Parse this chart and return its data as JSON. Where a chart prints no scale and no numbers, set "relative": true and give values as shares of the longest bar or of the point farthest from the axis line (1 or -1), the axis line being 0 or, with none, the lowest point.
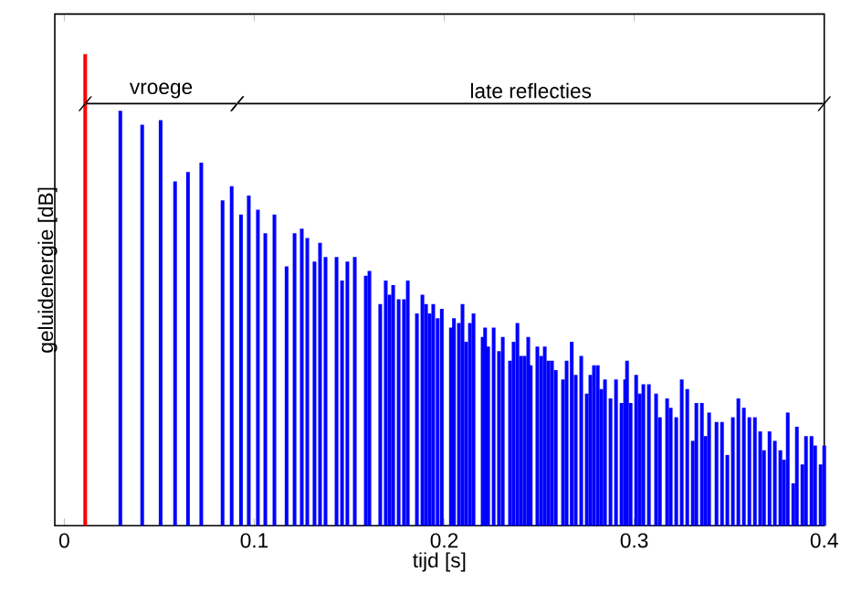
{
  "chart_data": {
    "type": "bar",
    "relative": true,
    "xlabel": "tijd  [s]",
    "ylabel": "geluidenergie  [dB]",
    "xlim": [
      -0.005,
      0.4
    ],
    "xticks": [
      0,
      0.1,
      0.2,
      0.3,
      0.4
    ],
    "grid": false,
    "annotations": [
      "vroege",
      "late reflecties"
    ],
    "x": [
      0.011,
      0.0295,
      0.041,
      0.0507,
      0.0583,
      0.0651,
      0.0721,
      0.0833,
      0.0881,
      0.093,
      0.0971,
      0.1019,
      0.1058,
      0.1106,
      0.117,
      0.1212,
      0.125,
      0.1279,
      0.1317,
      0.1346,
      0.1375,
      0.1433,
      0.1462,
      0.149,
      0.1529,
      0.1587,
      0.1606,
      0.1663,
      0.1692,
      0.1712,
      0.1731,
      0.176,
      0.1788,
      0.1808,
      0.1856,
      0.1885,
      0.1904,
      0.1923,
      0.1942,
      0.1965,
      0.1987,
      0.2035,
      0.2051,
      0.2077,
      0.2096,
      0.2115,
      0.2135,
      0.2154,
      0.2202,
      0.2215,
      0.2231,
      0.226,
      0.2288,
      0.2308,
      0.2346,
      0.2365,
      0.2385,
      0.2404,
      0.2423,
      0.2442,
      0.2455,
      0.249,
      0.251,
      0.2529,
      0.2548,
      0.2567,
      0.2587,
      0.2625,
      0.2644,
      0.2671,
      0.2692,
      0.2721,
      0.275,
      0.2769,
      0.2788,
      0.2808,
      0.2827,
      0.2846,
      0.2875,
      0.2904,
      0.2933,
      0.2952,
      0.2962,
      0.2981,
      0.301,
      0.3029,
      0.3048,
      0.3077,
      0.3115,
      0.3135,
      0.3173,
      0.3192,
      0.3221,
      0.325,
      0.3279,
      0.3308,
      0.3327,
      0.3356,
      0.3375,
      0.3394,
      0.3433,
      0.3462,
      0.349,
      0.3519,
      0.3548,
      0.3577,
      0.3606,
      0.3635,
      0.3663,
      0.3683,
      0.3712,
      0.374,
      0.3769,
      0.3788,
      0.3808,
      0.3837,
      0.3856,
      0.3885,
      0.3904,
      0.3933,
      0.3952,
      0.3981,
      0.4
    ],
    "values": [
      1,
      0.88,
      0.85,
      0.86,
      0.73,
      0.75,
      0.77,
      0.69,
      0.72,
      0.66,
      0.7,
      0.67,
      0.62,
      0.66,
      0.55,
      0.62,
      0.63,
      0.61,
      0.56,
      0.6,
      0.57,
      0.57,
      0.52,
      0.56,
      0.57,
      0.53,
      0.54,
      0.47,
      0.52,
      0.49,
      0.51,
      0.48,
      0.48,
      0.52,
      0.45,
      0.49,
      0.47,
      0.45,
      0.47,
      0.44,
      0.46,
      0.42,
      0.44,
      0.43,
      0.47,
      0.39,
      0.43,
      0.45,
      0.4,
      0.42,
      0.38,
      0.42,
      0.37,
      0.4,
      0.35,
      0.39,
      0.43,
      0.36,
      0.36,
      0.4,
      0.34,
      0.38,
      0.36,
      0.38,
      0.35,
      0.35,
      0.33,
      0.31,
      0.35,
      0.39,
      0.32,
      0.36,
      0.28,
      0.32,
      0.34,
      0.34,
      0.29,
      0.31,
      0.27,
      0.31,
      0.26,
      0.31,
      0.35,
      0.26,
      0.32,
      0.28,
      0.3,
      0.3,
      0.28,
      0.23,
      0.27,
      0.25,
      0.23,
      0.31,
      0.29,
      0.18,
      0.26,
      0.26,
      0.19,
      0.24,
      0.22,
      0.22,
      0.15,
      0.23,
      0.27,
      0.25,
      0.23,
      0.23,
      0.2,
      0.16,
      0.2,
      0.18,
      0.16,
      0.14,
      0.24,
      0.09,
      0.21,
      0.13,
      0.19,
      0.19,
      0.17,
      0.13,
      0.17
    ],
    "colors": [
      "#ff0000",
      "#0000ff",
      "#0000ff",
      "#0000ff",
      "#0000ff",
      "#0000ff",
      "#0000ff",
      "#0000ff",
      "#0000ff",
      "#0000ff",
      "#0000ff",
      "#0000ff",
      "#0000ff",
      "#0000ff",
      "#0000ff",
      "#0000ff",
      "#0000ff",
      "#0000ff",
      "#0000ff",
      "#0000ff",
      "#0000ff",
      "#0000ff",
      "#0000ff",
      "#0000ff",
      "#0000ff",
      "#0000ff",
      "#0000ff",
      "#0000ff",
      "#0000ff",
      "#0000ff",
      "#0000ff",
      "#0000ff",
      "#0000ff",
      "#0000ff",
      "#0000ff",
      "#0000ff",
      "#0000ff",
      "#0000ff",
      "#0000ff",
      "#0000ff",
      "#0000ff",
      "#0000ff",
      "#0000ff",
      "#0000ff",
      "#0000ff",
      "#0000ff",
      "#0000ff",
      "#0000ff",
      "#0000ff",
      "#0000ff",
      "#0000ff",
      "#0000ff",
      "#0000ff",
      "#0000ff",
      "#0000ff",
      "#0000ff",
      "#0000ff",
      "#0000ff",
      "#0000ff",
      "#0000ff",
      "#0000ff",
      "#0000ff",
      "#0000ff",
      "#0000ff",
      "#0000ff",
      "#0000ff",
      "#0000ff",
      "#0000ff",
      "#0000ff",
      "#0000ff",
      "#0000ff",
      "#0000ff",
      "#0000ff",
      "#0000ff",
      "#0000ff",
      "#0000ff",
      "#0000ff",
      "#0000ff",
      "#0000ff",
      "#0000ff",
      "#0000ff",
      "#0000ff",
      "#0000ff",
      "#0000ff",
      "#0000ff",
      "#0000ff",
      "#0000ff",
      "#0000ff",
      "#0000ff",
      "#0000ff",
      "#0000ff",
      "#0000ff",
      "#0000ff",
      "#0000ff",
      "#0000ff",
      "#0000ff",
      "#0000ff",
      "#0000ff",
      "#0000ff",
      "#0000ff",
      "#0000ff",
      "#0000ff",
      "#0000ff",
      "#0000ff",
      "#0000ff",
      "#0000ff",
      "#0000ff",
      "#0000ff",
      "#0000ff",
      "#0000ff",
      "#0000ff",
      "#0000ff",
      "#0000ff",
      "#0000ff",
      "#0000ff",
      "#0000ff",
      "#0000ff",
      "#0000ff",
      "#0000ff",
      "#0000ff",
      "#0000ff",
      "#0000ff",
      "#0000ff"
    ]
  }
}
